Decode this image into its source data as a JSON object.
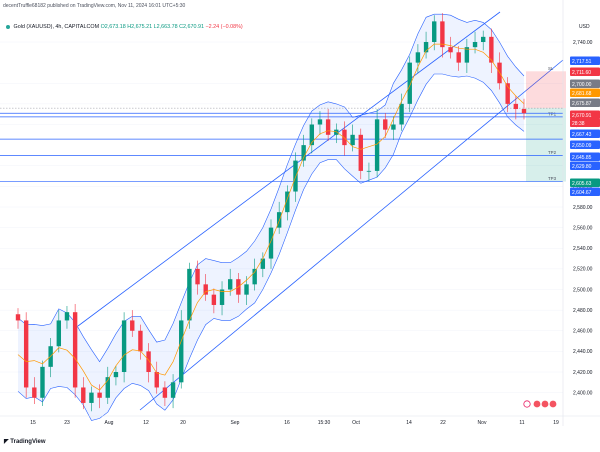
{
  "header": {
    "published": "decentTruffle68182 published on TradingView.com, Nov 11, 2024 16:01 UTC+5:30",
    "symbol": "Gold (XAUUSD), 4h, CAPITALCOM",
    "o": "O2,673.18",
    "h": "H2,675.21",
    "l": "L2,663.78",
    "c": "C2,670.91",
    "change": "−2.24 (−0.08%)"
  },
  "axis": {
    "currency": "USD",
    "ticks": [
      "2,740.00",
      "2,700.00",
      "2,680.00",
      "2,660.00",
      "2,620.00",
      "2,600.00",
      "2,580.00",
      "2,560.00",
      "2,540.00",
      "2,520.00",
      "2,500.00",
      "2,480.00",
      "2,460.00",
      "2,440.00",
      "2,420.00",
      "2,400.00"
    ]
  },
  "price_tags": [
    {
      "value": "2,717.51",
      "color": "#2962ff"
    },
    {
      "value": "2,711.60",
      "color": "#f23645"
    },
    {
      "value": "2,700.00",
      "color": "#787b86"
    },
    {
      "value": "2,681.68",
      "color": "#ff9800"
    },
    {
      "value": "2,675.87",
      "color": "#787b86"
    },
    {
      "value": "2,670.91",
      "color": "#f23645"
    },
    {
      "value": "28:38",
      "color": "#f23645"
    },
    {
      "value": "2,667.43",
      "color": "#2962ff"
    },
    {
      "value": "2,650.09",
      "color": "#2962ff"
    },
    {
      "value": "2,645.85",
      "color": "#2962ff"
    },
    {
      "value": "2,629.80",
      "color": "#2962ff"
    },
    {
      "value": "2,605.63",
      "color": "#089981"
    },
    {
      "value": "2,604.67",
      "color": "#2962ff"
    }
  ],
  "zones": {
    "sl": "SL",
    "tp1": "TP1",
    "tp2": "TP2",
    "tp3": "TP3"
  },
  "x_axis": [
    "15",
    "23",
    "Aug",
    "12",
    "20",
    "Sep",
    "16",
    "15:30",
    "Oct",
    "14",
    "22",
    "Nov",
    "11",
    "19"
  ],
  "colors": {
    "up": "#089981",
    "down": "#f23645",
    "band": "#2962ff",
    "ema": "#ff9800",
    "line": "#2962ff"
  },
  "watermark": "TradingView",
  "chart_data": {
    "type": "candlestick",
    "y_range": [
      2390,
      2790
    ],
    "series": [
      {
        "name": "Price close",
        "values": [
          2470,
          2405,
          2395,
          2425,
          2445,
          2470,
          2478,
          2405,
          2390,
          2400,
          2395,
          2415,
          2420,
          2470,
          2460,
          2440,
          2420,
          2405,
          2395,
          2410,
          2470,
          2520,
          2505,
          2495,
          2485,
          2500,
          2510,
          2495,
          2505,
          2520,
          2530,
          2560,
          2575,
          2595,
          2625,
          2640,
          2660,
          2665,
          2650,
          2655,
          2640,
          2650,
          2615,
          2615,
          2665,
          2655,
          2660,
          2680,
          2720,
          2730,
          2740,
          2760,
          2735,
          2730,
          2720,
          2735,
          2740,
          2745,
          2720,
          2700,
          2680,
          2675,
          2671
        ]
      }
    ],
    "reference_levels": [
      2717.51,
      2711.6,
      2700.0,
      2681.68,
      2675.87,
      2670.91,
      2667.43,
      2650.09,
      2645.85,
      2629.8,
      2605.63,
      2604.67
    ]
  }
}
